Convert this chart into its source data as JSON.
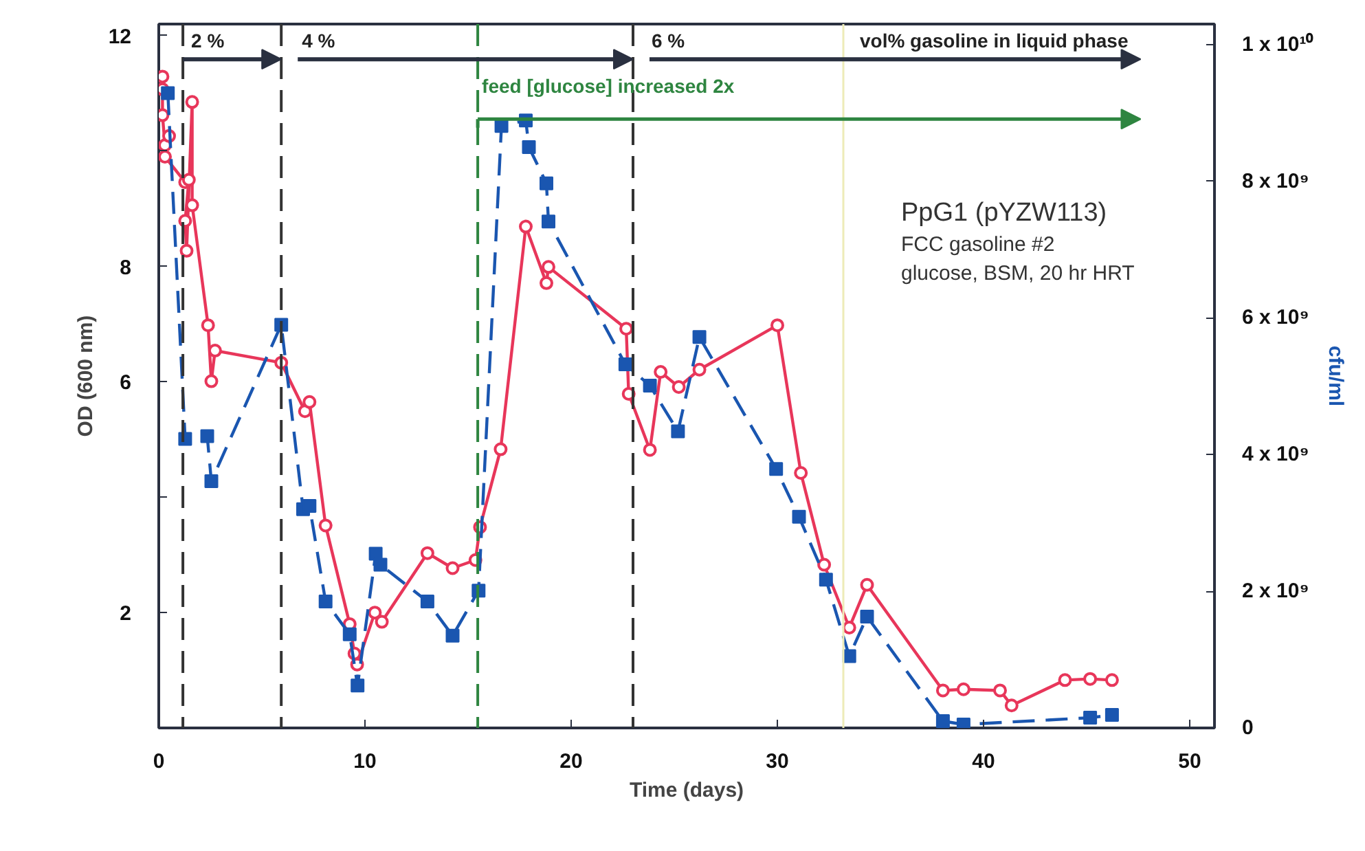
{
  "chart_data": {
    "type": "line",
    "xlabel": "Time (days)",
    "ylabel": "OD (600 nm)",
    "y2label": "cfu/ml",
    "xlim": [
      0,
      51.2
    ],
    "xticks": [
      0,
      10,
      20,
      30,
      40,
      50
    ],
    "ylim": [
      0,
      12.2
    ],
    "yticks": [
      {
        "value": 2,
        "label": "2"
      },
      {
        "value": 4,
        "label": null
      },
      {
        "value": 6,
        "label": "6"
      },
      {
        "value": 8,
        "label": "8"
      },
      {
        "value": 10,
        "label": null
      },
      {
        "value": 12,
        "label": "12"
      }
    ],
    "y2lim": [
      0,
      10300000000
    ],
    "y2ticks": [
      0,
      {
        "value": 2000000000,
        "label": "2 x 10⁹"
      },
      {
        "value": 4000000000,
        "label": "4 x 10⁹"
      },
      {
        "value": 6000000000,
        "label": "6 x 10⁹"
      },
      {
        "value": 8000000000,
        "label": "8 x 10⁹"
      },
      {
        "value": 10000000000,
        "label": "1 x 10¹⁰"
      }
    ],
    "grid": false,
    "series": [
      {
        "color": "#e8365a",
        "marker": "circle",
        "line_style": "solid",
        "x": [
          0.18,
          0.18,
          0.18,
          0.3,
          0.5,
          0.3,
          1.28,
          1.46,
          1.28,
          1.35,
          1.62,
          1.62,
          2.39,
          2.55,
          2.73,
          5.94,
          7.09,
          7.31,
          8.09,
          9.26,
          9.49,
          9.62,
          10.48,
          10.82,
          13.03,
          14.25,
          15.36,
          15.58,
          16.58,
          17.8,
          18.8,
          18.9,
          22.67,
          22.79,
          23.82,
          24.34,
          25.22,
          26.22,
          30.0,
          31.14,
          32.27,
          33.49,
          34.35,
          38.03,
          39.03,
          40.8,
          41.36,
          43.95,
          45.17,
          46.23
        ],
        "values": [
          11.29,
          11.07,
          10.62,
          10.1,
          10.26,
          9.9,
          9.46,
          9.5,
          8.79,
          8.27,
          10.85,
          9.06,
          6.98,
          6.01,
          6.54,
          6.33,
          5.49,
          5.65,
          3.51,
          1.8,
          1.29,
          1.1,
          2.0,
          1.84,
          3.03,
          2.77,
          2.91,
          3.48,
          4.83,
          8.69,
          7.71,
          7.99,
          6.92,
          5.79,
          4.82,
          6.17,
          5.91,
          6.21,
          6.98,
          4.42,
          2.83,
          1.74,
          2.48,
          0.65,
          0.67,
          0.65,
          0.39,
          0.83,
          0.85,
          0.83
        ]
      },
      {
        "color": "#1a56b0",
        "marker": "square",
        "line_style": "dashed",
        "axis": "y2",
        "x": [
          0.44,
          1.28,
          2.35,
          2.55,
          5.94,
          7.0,
          7.31,
          8.09,
          9.26,
          9.64,
          10.52,
          10.75,
          13.03,
          14.25,
          15.51,
          16.62,
          17.8,
          17.95,
          18.8,
          18.9,
          22.63,
          23.82,
          25.18,
          26.22,
          29.94,
          31.05,
          32.36,
          33.49,
          34.35,
          38.03,
          39.03,
          45.17,
          46.23
        ],
        "values": [
          9290000000,
          4230000000,
          4270000000,
          3610000000,
          5900000000,
          3200000000,
          3250000000,
          1850000000,
          1370000000,
          620000000,
          2550000000,
          2390000000,
          1850000000,
          1350000000,
          2010000000,
          8810000000,
          8890000000,
          8500000000,
          7970000000,
          7410000000,
          5320000000,
          5010000000,
          4340000000,
          5720000000,
          3790000000,
          3090000000,
          2170000000,
          1050000000,
          1630000000,
          100000000,
          50000000,
          150000000,
          190000000
        ]
      }
    ],
    "ref_lines": [
      {
        "axis": "x",
        "value": 1.17,
        "color": "#333333",
        "line_style": "dashed"
      },
      {
        "axis": "x",
        "value": 5.94,
        "color": "#333333",
        "line_style": "dashed"
      },
      {
        "axis": "x",
        "value": 15.47,
        "color": "#2e8540",
        "line_style": "dashed"
      },
      {
        "axis": "x",
        "value": 23.0,
        "color": "#333333",
        "line_style": "dashed"
      },
      {
        "axis": "x",
        "value": 33.2,
        "color": "#eeecb8",
        "line_style": "solid"
      }
    ],
    "annotations": [
      {
        "text": "2 %",
        "x": 5.94,
        "y": 11.59
      },
      {
        "text": "4 %",
        "x": 23.0,
        "y": 11.59
      },
      "6 %",
      "vol% gasoline in liquid phase",
      "feed [glucose] increased 2x",
      "PpG1 (pYZW113)",
      "FCC gasoline #2",
      "glucose, BSM, 20 hr HRT"
    ]
  }
}
